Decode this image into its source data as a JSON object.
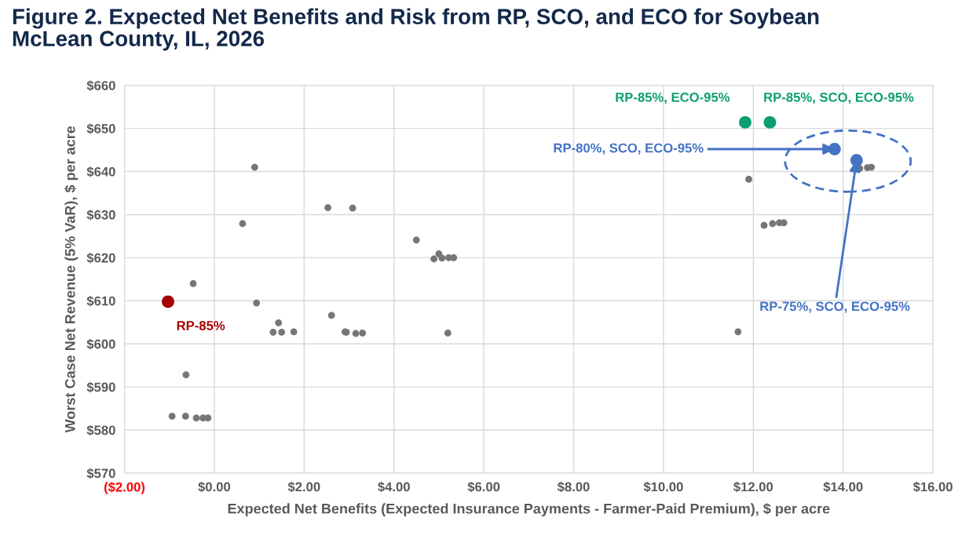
{
  "chart_data": {
    "type": "scatter",
    "title": "Figure 2. Expected Net Benefits and Risk from RP, SCO, and ECO for Soybean\nMcLean County, IL, 2026",
    "xlabel": "Expected Net Benefits (Expected Insurance Payments - Farmer-Paid Premium), $ per acre",
    "ylabel": "Worst Case Net Revenue (5% VaR), $ per acre",
    "xlim": [
      -2,
      16
    ],
    "xticks": [
      {
        "value": -2,
        "label": "($2.00)"
      },
      {
        "value": 0,
        "label": "$0.00"
      },
      {
        "value": 2,
        "label": "$2.00"
      },
      {
        "value": 4,
        "label": "$4.00"
      },
      {
        "value": 6,
        "label": "$6.00"
      },
      {
        "value": 8,
        "label": "$8.00"
      },
      {
        "value": 10,
        "label": "$10.00"
      },
      {
        "value": 12,
        "label": "$12.00"
      },
      {
        "value": 14,
        "label": "$14.00"
      },
      {
        "value": 16,
        "label": "$16.00"
      }
    ],
    "ylim": [
      570,
      660
    ],
    "yticks": [
      {
        "value": 570,
        "label": "$570"
      },
      {
        "value": 580,
        "label": "$580"
      },
      {
        "value": 590,
        "label": "$590"
      },
      {
        "value": 600,
        "label": "$600"
      },
      {
        "value": 610,
        "label": "$610"
      },
      {
        "value": 620,
        "label": "$620"
      },
      {
        "value": 630,
        "label": "$630"
      },
      {
        "value": 640,
        "label": "$640"
      },
      {
        "value": 650,
        "label": "$650"
      },
      {
        "value": 660,
        "label": "$660"
      }
    ],
    "grid": true,
    "legend": false,
    "marker": "circle",
    "series": [
      {
        "color": "#767676",
        "x": [
          0.63,
          -0.47,
          0.94,
          0.9,
          1.43,
          1.31,
          1.5,
          1.77,
          -0.63,
          -0.94,
          -0.64,
          -0.4,
          -0.25,
          -0.14,
          2.53,
          3.08,
          2.61,
          2.91,
          2.94,
          3.15,
          3.3,
          4.5,
          4.89,
          5.0,
          5.07,
          5.22,
          5.33,
          5.2,
          11.66,
          11.9,
          12.24,
          12.43,
          12.58,
          12.68,
          14.37,
          14.54,
          14.63
        ],
        "values": [
          627.9,
          614.0,
          609.5,
          641.0,
          604.9,
          602.7,
          602.7,
          602.8,
          592.8,
          583.2,
          583.2,
          582.8,
          582.8,
          582.8,
          631.6,
          631.5,
          606.6,
          602.8,
          602.7,
          602.4,
          602.5,
          624.1,
          619.7,
          620.9,
          619.9,
          620.0,
          620.0,
          602.5,
          602.8,
          638.2,
          627.5,
          627.9,
          628.1,
          628.1,
          640.7,
          640.9,
          641.0
        ]
      },
      {
        "color": "#a50000",
        "x": [
          -1.03
        ],
        "values": [
          609.8
        ]
      },
      {
        "color": "#0c9e73",
        "x": [
          11.82,
          12.37
        ],
        "values": [
          651.4,
          651.4
        ]
      },
      {
        "color": "#4472c4",
        "x": [
          13.81,
          14.3
        ],
        "values": [
          645.2,
          642.6
        ]
      }
    ],
    "annotations": [
      {
        "text": "RP-85%",
        "x": -1.03,
        "y": 609.8
      },
      {
        "text": "RP-85%, ECO-95%",
        "x": 11.82,
        "y": 651.4
      },
      {
        "text": "RP-85%, SCO, ECO-95%",
        "x": 12.37,
        "y": 651.4
      },
      {
        "text": "RP-80%, SCO, ECO-95%",
        "x": 13.81,
        "y": 645.2
      },
      {
        "text": "RP-75%, SCO, ECO-95%",
        "x": 14.3,
        "y": 642.6
      }
    ]
  }
}
